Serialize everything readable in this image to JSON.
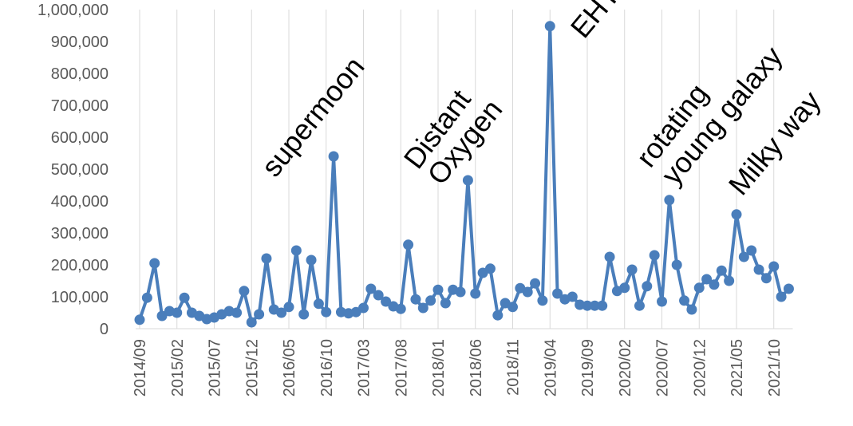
{
  "chart_data": {
    "type": "line",
    "categories": [
      "2014/09",
      null,
      null,
      null,
      null,
      "2015/02",
      null,
      null,
      null,
      null,
      "2015/07",
      null,
      null,
      null,
      null,
      "2015/12",
      null,
      null,
      null,
      null,
      "2016/05",
      null,
      null,
      null,
      null,
      "2016/10",
      null,
      null,
      null,
      null,
      "2017/03",
      null,
      null,
      null,
      null,
      "2017/08",
      null,
      null,
      null,
      null,
      "2018/01",
      null,
      null,
      null,
      null,
      "2018/06",
      null,
      null,
      null,
      null,
      "2018/11",
      null,
      null,
      null,
      null,
      "2019/04",
      null,
      null,
      null,
      null,
      "2019/09",
      null,
      null,
      null,
      null,
      "2020/02",
      null,
      null,
      null,
      null,
      "2020/07",
      null,
      null,
      null,
      null,
      "2020/12",
      null,
      null,
      null,
      null,
      "2021/05",
      null,
      null,
      null,
      null,
      "2021/10",
      null,
      null
    ],
    "series": [
      {
        "color": "#4a7ebb",
        "values": [
          28000,
          97000,
          205000,
          40000,
          55000,
          50000,
          97000,
          50000,
          40000,
          30000,
          35000,
          45000,
          55000,
          50000,
          118000,
          20000,
          45000,
          220000,
          60000,
          50000,
          68000,
          245000,
          45000,
          215000,
          78000,
          52000,
          540000,
          52000,
          48000,
          52000,
          65000,
          125000,
          105000,
          85000,
          70000,
          62000,
          263000,
          92000,
          65000,
          88000,
          122000,
          80000,
          122000,
          115000,
          465000,
          110000,
          175000,
          188000,
          42000,
          80000,
          68000,
          127000,
          115000,
          142000,
          88000,
          948000,
          110000,
          92000,
          100000,
          75000,
          72000,
          72000,
          72000,
          225000,
          118000,
          128000,
          185000,
          72000,
          133000,
          230000,
          85000,
          403000,
          200000,
          88000,
          60000,
          128000,
          155000,
          138000,
          182000,
          150000,
          358000,
          225000,
          245000,
          185000,
          158000,
          195000,
          100000,
          125000
        ]
      }
    ],
    "ylim": [
      0,
      1000000
    ],
    "yticks": [
      0,
      {
        "value": 100000,
        "label": "100,000"
      },
      {
        "value": 200000,
        "label": "200,000"
      },
      {
        "value": 300000,
        "label": "300,000"
      },
      {
        "value": 400000,
        "label": "400,000"
      },
      {
        "value": 500000,
        "label": "500,000"
      },
      {
        "value": 600000,
        "label": "600,000"
      },
      {
        "value": 700000,
        "label": "700,000"
      },
      {
        "value": 800000,
        "label": "800,000"
      },
      {
        "value": 900000,
        "label": "900,000"
      },
      {
        "value": 1000000,
        "label": "1,000,000"
      }
    ],
    "annotations": [
      "supermoon",
      "Distant",
      "Oxygen",
      "EHT",
      "rotating",
      "young galaxy",
      "Milky way"
    ],
    "grid": true
  }
}
